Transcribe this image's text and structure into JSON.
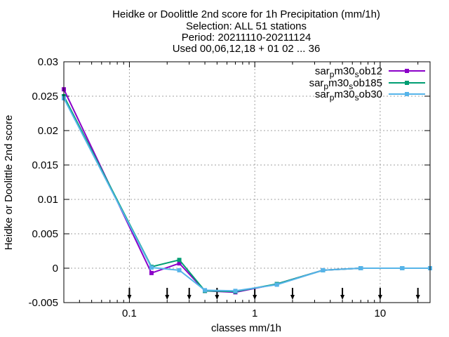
{
  "chart_data": {
    "type": "line",
    "title_lines": [
      "Heidke or Doolittle 2nd score  for 1h Precipitation (mm/1h)",
      "Selection: ALL     51 stations",
      "Period: 20211110-20211124",
      "Used 00,06,12,18 + 01 02 ... 36"
    ],
    "xlabel": "classes mm/1h",
    "ylabel": "Heidke or Doolittle 2nd score",
    "xscale": "log",
    "xlim": [
      0.03,
      25
    ],
    "ylim": [
      -0.005,
      0.03
    ],
    "x_ticks": [
      {
        "value": 0.1,
        "label": "0.1"
      },
      {
        "value": 1,
        "label": "1"
      },
      {
        "value": 10,
        "label": "10"
      }
    ],
    "y_ticks": [
      {
        "value": -0.005,
        "label": "-0.005"
      },
      {
        "value": 0,
        "label": "0"
      },
      {
        "value": 0.005,
        "label": "0.005"
      },
      {
        "value": 0.01,
        "label": "0.01"
      },
      {
        "value": 0.015,
        "label": "0.015"
      },
      {
        "value": 0.02,
        "label": "0.02"
      },
      {
        "value": 0.025,
        "label": "0.025"
      },
      {
        "value": 0.03,
        "label": "0.03"
      }
    ],
    "grid": true,
    "legend_position": "top-right",
    "class_markers": [
      0.1,
      0.2,
      0.3,
      0.5,
      1,
      2,
      5,
      10,
      20
    ],
    "series": [
      {
        "name_main": "sar",
        "name_sub1": "p",
        "name_mid": "m30",
        "name_sub2": "s",
        "name_end": "ob12",
        "color": "#8b00c8",
        "x": [
          0.03,
          0.15,
          0.25,
          0.4,
          0.7,
          1.5,
          3.5,
          7,
          15,
          25
        ],
        "values": [
          0.026,
          -0.0007,
          0.0007,
          -0.0033,
          -0.0035,
          -0.0023,
          -0.0003,
          0.0,
          0.0,
          0.0
        ]
      },
      {
        "name_main": "sar",
        "name_sub1": "p",
        "name_mid": "m30",
        "name_sub2": "s",
        "name_end": "ob185",
        "color": "#009e73",
        "x": [
          0.03,
          0.15,
          0.25,
          0.4,
          0.7,
          1.5,
          3.5,
          7,
          15,
          25
        ],
        "values": [
          0.025,
          0.0002,
          0.0012,
          -0.0033,
          -0.0034,
          -0.0023,
          -0.0003,
          0.0,
          0.0,
          0.0
        ]
      },
      {
        "name_main": "sar",
        "name_sub1": "p",
        "name_mid": "m30",
        "name_sub2": "s",
        "name_end": "ob30",
        "color": "#56b4e9",
        "x": [
          0.03,
          0.15,
          0.25,
          0.4,
          0.7,
          1.5,
          3.5,
          7,
          15,
          25
        ],
        "values": [
          0.0247,
          0.0001,
          -0.0003,
          -0.0032,
          -0.0033,
          -0.0024,
          -0.0003,
          0.0,
          0.0,
          0.0
        ]
      }
    ]
  }
}
